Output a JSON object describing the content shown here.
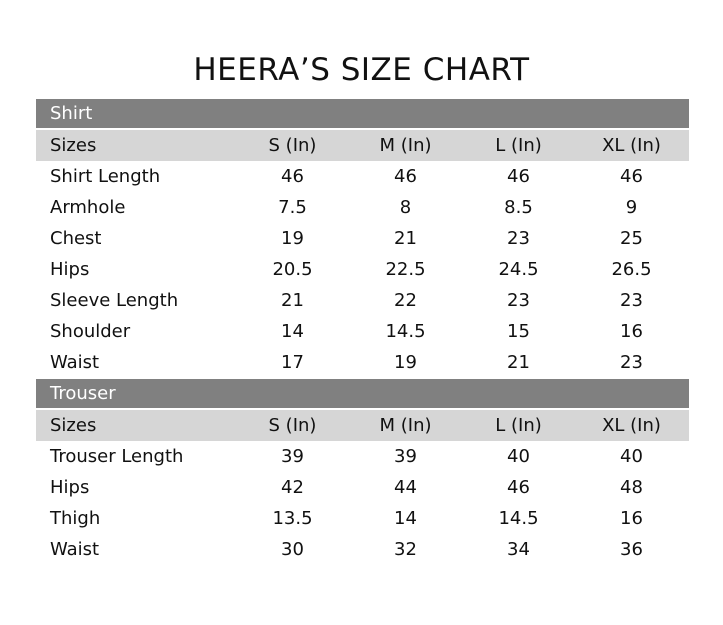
{
  "title": "HEERA’S SIZE CHART",
  "sections": [
    {
      "name": "Shirt",
      "columns": [
        "Sizes",
        "S (In)",
        "M (In)",
        "L (In)",
        "XL (In)"
      ],
      "rows": [
        [
          "Shirt Length",
          "46",
          "46",
          "46",
          "46"
        ],
        [
          "Armhole",
          "7.5",
          "8",
          "8.5",
          "9"
        ],
        [
          "Chest",
          "19",
          "21",
          "23",
          "25"
        ],
        [
          "Hips",
          "20.5",
          "22.5",
          "24.5",
          "26.5"
        ],
        [
          "Sleeve Length",
          "21",
          "22",
          "23",
          "23"
        ],
        [
          "Shoulder",
          "14",
          "14.5",
          "15",
          "16"
        ],
        [
          "Waist",
          "17",
          "19",
          "21",
          "23"
        ]
      ]
    },
    {
      "name": "Trouser",
      "columns": [
        "Sizes",
        "S (In)",
        "M (In)",
        "L (In)",
        "XL (In)"
      ],
      "rows": [
        [
          "Trouser Length",
          "39",
          "39",
          "40",
          "40"
        ],
        [
          "Hips",
          "42",
          "44",
          "46",
          "48"
        ],
        [
          "Thigh",
          "13.5",
          "14",
          "14.5",
          "16"
        ],
        [
          "Waist",
          "30",
          "32",
          "34",
          "36"
        ]
      ]
    }
  ],
  "colors": {
    "section_header": "#808080",
    "sizes_row": "#d6d6d6"
  }
}
